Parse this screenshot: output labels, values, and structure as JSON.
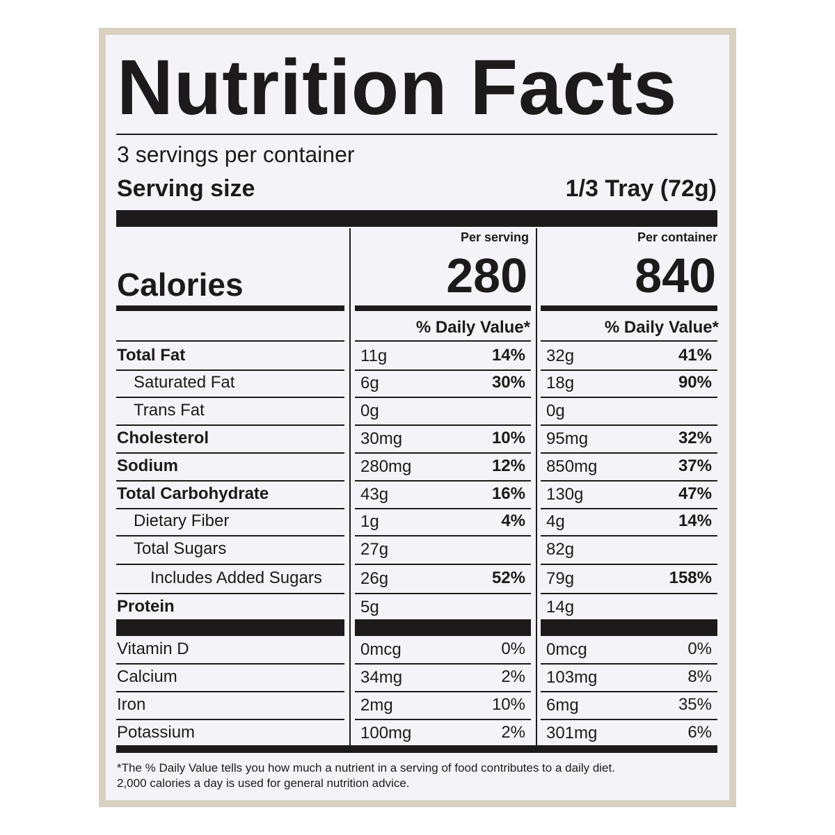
{
  "header": {
    "title": "Nutrition Facts",
    "servings": "3 servings per container",
    "serving_size_label": "Serving size",
    "serving_size": "1/3 Tray (72g)"
  },
  "calories": {
    "label": "Calories",
    "per_serving_label": "Per serving",
    "per_serving": "280",
    "per_container_label": "Per container",
    "per_container": "840"
  },
  "daily_value_heading": "% Daily Value*",
  "nutrients": [
    {
      "name": "Total Fat",
      "serving": {
        "amount": "11g",
        "dv": "14%"
      },
      "container": {
        "amount": "32g",
        "dv": "41%"
      }
    },
    {
      "name": "Saturated Fat",
      "serving": {
        "amount": "6g",
        "dv": "30%"
      },
      "container": {
        "amount": "18g",
        "dv": "90%"
      }
    },
    {
      "name": "Trans Fat",
      "serving": {
        "amount": "0g"
      },
      "container": {
        "amount": "0g"
      }
    },
    {
      "name": "Cholesterol",
      "serving": {
        "amount": "30mg",
        "dv": "10%"
      },
      "container": {
        "amount": "95mg",
        "dv": "32%"
      }
    },
    {
      "name": "Sodium",
      "serving": {
        "amount": "280mg",
        "dv": "12%"
      },
      "container": {
        "amount": "850mg",
        "dv": "37%"
      }
    },
    {
      "name": "Total Carbohydrate",
      "serving": {
        "amount": "43g",
        "dv": "16%"
      },
      "container": {
        "amount": "130g",
        "dv": "47%"
      }
    },
    {
      "name": "Dietary Fiber",
      "serving": {
        "amount": "1g",
        "dv": "4%"
      },
      "container": {
        "amount": "4g",
        "dv": "14%"
      }
    },
    {
      "name": "Total Sugars",
      "serving": {
        "amount": "27g"
      },
      "container": {
        "amount": "82g"
      }
    },
    {
      "name": "Includes Added Sugars",
      "serving": {
        "amount": "26g",
        "dv": "52%"
      },
      "container": {
        "amount": "79g",
        "dv": "158%"
      }
    },
    {
      "name": "Protein",
      "serving": {
        "amount": "5g"
      },
      "container": {
        "amount": "14g"
      }
    }
  ],
  "vitamins": [
    {
      "name": "Vitamin D",
      "serving": {
        "amount": "0mcg",
        "dv": "0%"
      },
      "container": {
        "amount": "0mcg",
        "dv": "0%"
      }
    },
    {
      "name": "Calcium",
      "serving": {
        "amount": "34mg",
        "dv": "2%"
      },
      "container": {
        "amount": "103mg",
        "dv": "8%"
      }
    },
    {
      "name": "Iron",
      "serving": {
        "amount": "2mg",
        "dv": "10%"
      },
      "container": {
        "amount": "6mg",
        "dv": "35%"
      }
    },
    {
      "name": "Potassium",
      "serving": {
        "amount": "100mg",
        "dv": "2%"
      },
      "container": {
        "amount": "301mg",
        "dv": "6%"
      }
    }
  ],
  "footnote": [
    "*The % Daily Value tells you how much a nutrient in a serving of food contributes to a daily diet.",
    "2,000 calories a day is used for general nutrition advice."
  ]
}
